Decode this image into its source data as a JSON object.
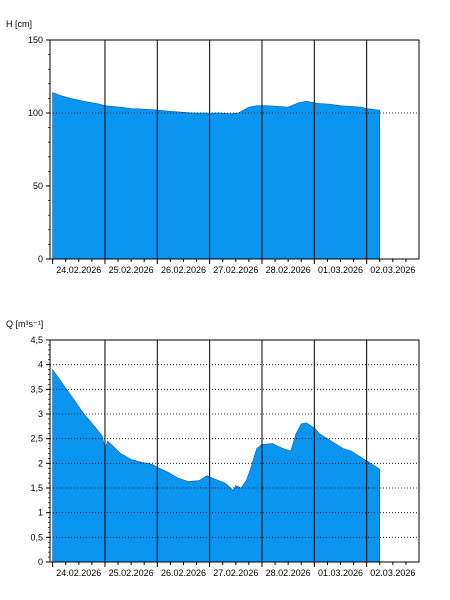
{
  "chart_data": [
    {
      "type": "area",
      "ylabel": "H [cm]",
      "ylim": [
        0,
        150
      ],
      "y_ticks": [
        "0",
        "50",
        "100",
        "150"
      ],
      "x_tick_labels": [
        "24.02.2026",
        "25.02.2026",
        "26.02.2026",
        "27.02.2026",
        "28.02.2026",
        "01.03.2026",
        "02.03.2026"
      ],
      "grid": "vertical solid lines at day boundaries, dotted horizontal line at 100",
      "fill_color": "#0a96f0",
      "series": [
        {
          "x": [
            0,
            0.15,
            0.35,
            0.6,
            0.9,
            1.0,
            1.3,
            1.5,
            1.8,
            2.0,
            2.3,
            2.5,
            2.7,
            2.9,
            3.0,
            3.2,
            3.4,
            3.55,
            3.75,
            3.9,
            4.1,
            4.3,
            4.5,
            4.7,
            4.85,
            5.0,
            5.1,
            5.3,
            5.5,
            5.7,
            5.9,
            6.0,
            6.25
          ],
          "y": [
            114,
            112,
            110,
            108,
            106,
            105,
            104,
            103,
            102.5,
            102,
            101,
            100.5,
            100,
            100,
            100,
            100,
            99.5,
            100,
            104,
            105,
            105,
            104.5,
            104,
            107,
            108,
            107,
            106.5,
            106,
            105,
            104.5,
            104,
            103,
            102
          ]
        }
      ]
    },
    {
      "type": "area",
      "ylabel": "Q [m³s⁻¹]",
      "ylim": [
        0,
        4.5
      ],
      "y_ticks": [
        "0",
        "0,5",
        "1",
        "1,5",
        "2",
        "2,5",
        "3",
        "3,5",
        "4",
        "4,5"
      ],
      "x_tick_labels": [
        "24.02.2026",
        "25.02.2026",
        "26.02.2026",
        "27.02.2026",
        "28.02.2026",
        "01.03.2026",
        "02.03.2026"
      ],
      "grid": "vertical solid lines at day boundaries, dotted horizontal lines at ticks",
      "fill_color": "#0a96f0",
      "series": [
        {
          "x": [
            0,
            0.2,
            0.4,
            0.6,
            0.8,
            0.95,
            1.0,
            1.05,
            1.1,
            1.3,
            1.5,
            1.7,
            1.9,
            2.0,
            2.2,
            2.4,
            2.6,
            2.8,
            2.95,
            3.1,
            3.3,
            3.45,
            3.5,
            3.6,
            3.7,
            3.8,
            3.9,
            4.0,
            4.2,
            4.4,
            4.55,
            4.65,
            4.75,
            4.85,
            4.95,
            5.0,
            5.1,
            5.25,
            5.4,
            5.55,
            5.7,
            5.85,
            6.0,
            6.15,
            6.25
          ],
          "y": [
            3.9,
            3.6,
            3.3,
            3.0,
            2.75,
            2.55,
            2.3,
            2.45,
            2.4,
            2.2,
            2.08,
            2.02,
            1.98,
            1.92,
            1.82,
            1.7,
            1.63,
            1.65,
            1.75,
            1.68,
            1.6,
            1.45,
            1.55,
            1.5,
            1.65,
            1.95,
            2.3,
            2.38,
            2.4,
            2.3,
            2.25,
            2.6,
            2.8,
            2.82,
            2.75,
            2.72,
            2.6,
            2.5,
            2.4,
            2.3,
            2.25,
            2.15,
            2.05,
            1.95,
            1.88
          ]
        }
      ]
    }
  ]
}
